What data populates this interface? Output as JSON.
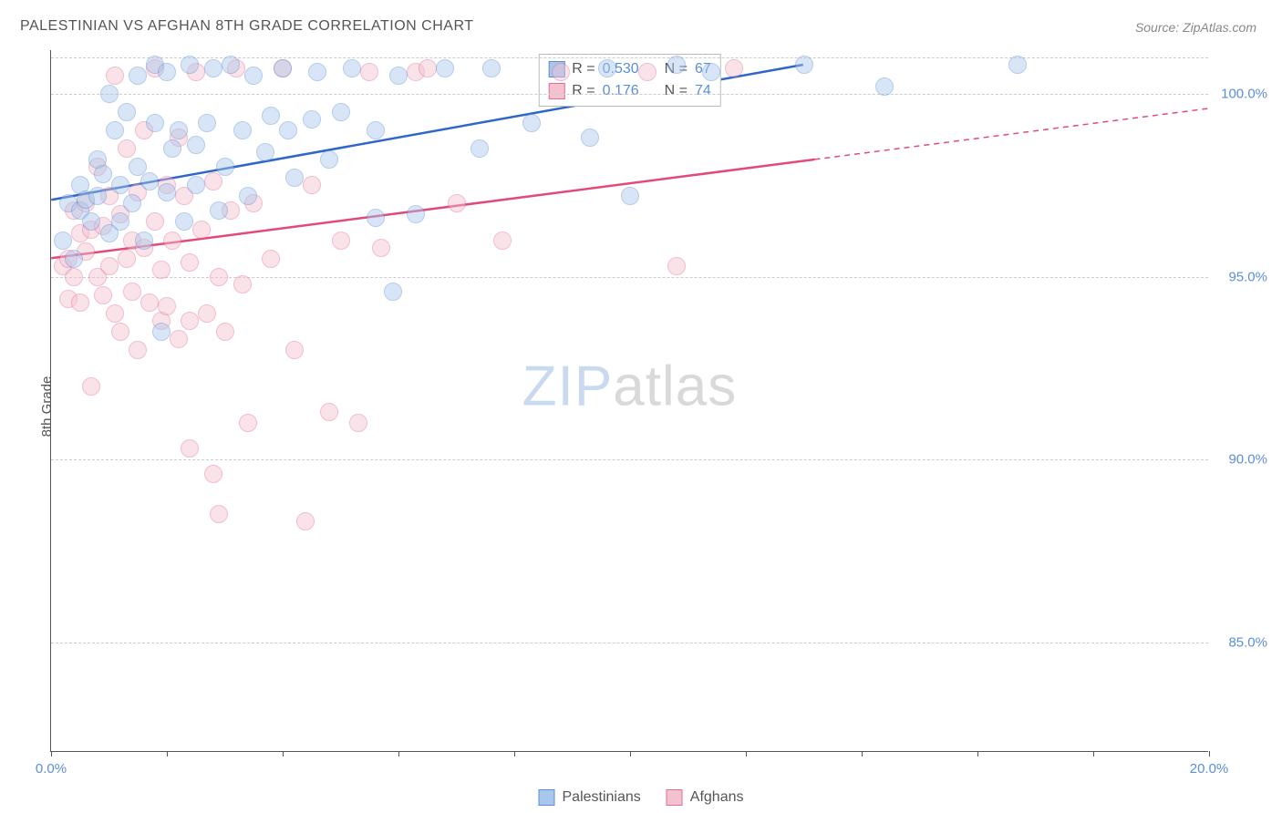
{
  "title": "PALESTINIAN VS AFGHAN 8TH GRADE CORRELATION CHART",
  "source": "Source: ZipAtlas.com",
  "watermark": {
    "part1": "ZIP",
    "part2": "atlas"
  },
  "y_axis_label": "8th Grade",
  "chart": {
    "type": "scatter",
    "background_color": "#ffffff",
    "grid_color": "#cccccc",
    "axis_color": "#555555",
    "tick_label_color": "#5b8fd6",
    "xlim": [
      0,
      20
    ],
    "ylim": [
      82,
      101.2
    ],
    "x_ticks": [
      0,
      2,
      4,
      6,
      8,
      10,
      12,
      14,
      16,
      18,
      20
    ],
    "x_tick_labels": {
      "0": "0.0%",
      "20": "20.0%"
    },
    "y_gridlines": [
      85,
      90,
      95,
      100,
      101
    ],
    "y_tick_labels": {
      "85": "85.0%",
      "90": "90.0%",
      "95": "95.0%",
      "100": "100.0%"
    },
    "marker_radius": 10,
    "marker_opacity": 0.45,
    "marker_border_width": 1.5,
    "trendline_width": 2.5
  },
  "series": {
    "palestinians": {
      "label": "Palestinians",
      "fill_color": "#a9c7ec",
      "border_color": "#5b8fd6",
      "line_color": "#2f67c9",
      "R_label": "R =",
      "R_value": "0.530",
      "N_label": "N =",
      "N_value": "67",
      "trend": {
        "x1": 0,
        "y1": 97.1,
        "x2": 13.0,
        "y2": 100.8,
        "dash_from_x": 20
      },
      "points": [
        [
          0.2,
          96.0
        ],
        [
          0.3,
          97.0
        ],
        [
          0.4,
          95.5
        ],
        [
          0.5,
          96.8
        ],
        [
          0.5,
          97.5
        ],
        [
          0.6,
          97.1
        ],
        [
          0.7,
          96.5
        ],
        [
          0.8,
          98.2
        ],
        [
          0.8,
          97.2
        ],
        [
          0.9,
          97.8
        ],
        [
          1.0,
          96.2
        ],
        [
          1.0,
          100.0
        ],
        [
          1.1,
          99.0
        ],
        [
          1.2,
          97.5
        ],
        [
          1.2,
          96.5
        ],
        [
          1.3,
          99.5
        ],
        [
          1.4,
          97.0
        ],
        [
          1.5,
          100.5
        ],
        [
          1.5,
          98.0
        ],
        [
          1.6,
          96.0
        ],
        [
          1.7,
          97.6
        ],
        [
          1.8,
          99.2
        ],
        [
          1.8,
          100.8
        ],
        [
          1.9,
          93.5
        ],
        [
          2.0,
          97.3
        ],
        [
          2.0,
          100.6
        ],
        [
          2.1,
          98.5
        ],
        [
          2.2,
          99.0
        ],
        [
          2.3,
          96.5
        ],
        [
          2.4,
          100.8
        ],
        [
          2.5,
          97.5
        ],
        [
          2.5,
          98.6
        ],
        [
          2.7,
          99.2
        ],
        [
          2.8,
          100.7
        ],
        [
          2.9,
          96.8
        ],
        [
          3.0,
          98.0
        ],
        [
          3.1,
          100.8
        ],
        [
          3.3,
          99.0
        ],
        [
          3.4,
          97.2
        ],
        [
          3.5,
          100.5
        ],
        [
          3.7,
          98.4
        ],
        [
          3.8,
          99.4
        ],
        [
          4.0,
          100.7
        ],
        [
          4.1,
          99.0
        ],
        [
          4.2,
          97.7
        ],
        [
          4.5,
          99.3
        ],
        [
          4.6,
          100.6
        ],
        [
          4.8,
          98.2
        ],
        [
          5.0,
          99.5
        ],
        [
          5.2,
          100.7
        ],
        [
          5.6,
          96.6
        ],
        [
          5.6,
          99.0
        ],
        [
          5.9,
          94.6
        ],
        [
          6.0,
          100.5
        ],
        [
          6.3,
          96.7
        ],
        [
          6.8,
          100.7
        ],
        [
          7.4,
          98.5
        ],
        [
          7.6,
          100.7
        ],
        [
          8.3,
          99.2
        ],
        [
          9.3,
          98.8
        ],
        [
          9.6,
          100.7
        ],
        [
          10.0,
          97.2
        ],
        [
          10.8,
          100.8
        ],
        [
          11.4,
          100.6
        ],
        [
          13.0,
          100.8
        ],
        [
          14.4,
          100.2
        ],
        [
          16.7,
          100.8
        ]
      ]
    },
    "afghans": {
      "label": "Afghans",
      "fill_color": "#f4c1cf",
      "border_color": "#e16f93",
      "line_color": "#e14b78",
      "R_label": "R =",
      "R_value": "0.176",
      "N_label": "N =",
      "N_value": "74",
      "trend": {
        "x1": 0,
        "y1": 95.5,
        "x2": 20,
        "y2": 99.6,
        "dash_from_x": 13.2
      },
      "points": [
        [
          0.2,
          95.3
        ],
        [
          0.3,
          94.4
        ],
        [
          0.3,
          95.5
        ],
        [
          0.4,
          96.8
        ],
        [
          0.4,
          95.0
        ],
        [
          0.5,
          94.3
        ],
        [
          0.5,
          96.2
        ],
        [
          0.6,
          97.0
        ],
        [
          0.6,
          95.7
        ],
        [
          0.7,
          92.0
        ],
        [
          0.7,
          96.3
        ],
        [
          0.8,
          95.0
        ],
        [
          0.8,
          98.0
        ],
        [
          0.9,
          96.4
        ],
        [
          0.9,
          94.5
        ],
        [
          1.0,
          97.2
        ],
        [
          1.0,
          95.3
        ],
        [
          1.1,
          100.5
        ],
        [
          1.1,
          94.0
        ],
        [
          1.2,
          96.7
        ],
        [
          1.2,
          93.5
        ],
        [
          1.3,
          95.5
        ],
        [
          1.3,
          98.5
        ],
        [
          1.4,
          94.6
        ],
        [
          1.4,
          96.0
        ],
        [
          1.5,
          97.3
        ],
        [
          1.5,
          93.0
        ],
        [
          1.6,
          95.8
        ],
        [
          1.6,
          99.0
        ],
        [
          1.7,
          94.3
        ],
        [
          1.8,
          96.5
        ],
        [
          1.8,
          100.7
        ],
        [
          1.9,
          95.2
        ],
        [
          1.9,
          93.8
        ],
        [
          2.0,
          97.5
        ],
        [
          2.0,
          94.2
        ],
        [
          2.1,
          96.0
        ],
        [
          2.2,
          98.8
        ],
        [
          2.2,
          93.3
        ],
        [
          2.3,
          97.2
        ],
        [
          2.4,
          90.3
        ],
        [
          2.4,
          95.4
        ],
        [
          2.4,
          93.8
        ],
        [
          2.5,
          100.6
        ],
        [
          2.6,
          96.3
        ],
        [
          2.7,
          94.0
        ],
        [
          2.8,
          89.6
        ],
        [
          2.8,
          97.6
        ],
        [
          2.9,
          95.0
        ],
        [
          2.9,
          88.5
        ],
        [
          3.0,
          93.5
        ],
        [
          3.1,
          96.8
        ],
        [
          3.2,
          100.7
        ],
        [
          3.3,
          94.8
        ],
        [
          3.4,
          91.0
        ],
        [
          3.5,
          97.0
        ],
        [
          3.8,
          95.5
        ],
        [
          4.0,
          100.7
        ],
        [
          4.2,
          93.0
        ],
        [
          4.4,
          88.3
        ],
        [
          4.5,
          97.5
        ],
        [
          4.8,
          91.3
        ],
        [
          5.0,
          96.0
        ],
        [
          5.3,
          91.0
        ],
        [
          5.5,
          100.6
        ],
        [
          5.7,
          95.8
        ],
        [
          6.3,
          100.6
        ],
        [
          6.5,
          100.7
        ],
        [
          7.0,
          97.0
        ],
        [
          7.8,
          96.0
        ],
        [
          8.8,
          100.6
        ],
        [
          10.3,
          100.6
        ],
        [
          10.8,
          95.3
        ],
        [
          11.8,
          100.7
        ]
      ]
    }
  },
  "legend_bottom": [
    {
      "key": "palestinians"
    },
    {
      "key": "afghans"
    }
  ]
}
